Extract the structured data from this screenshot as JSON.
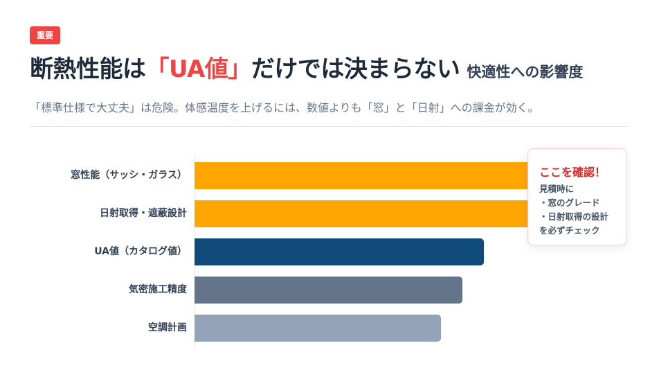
{
  "badge": "重要",
  "title": {
    "part1": "断熱性能は",
    "highlight": "「UA値」",
    "part2": "だけでは決まらない",
    "subtitle": "快適性への影響度"
  },
  "lead": "「標準仕様で大丈夫」は危険。体感温度を上げるには、数値よりも「窓」と「日射」への課金が効く。",
  "callout": {
    "title": "ここを確認！",
    "lines": [
      "見積時に",
      "・窓のグレード",
      "・日射取得の設計",
      "を必ずチェック"
    ]
  },
  "chart_data": {
    "type": "bar",
    "orientation": "horizontal",
    "title": "快適性への影響度",
    "categories": [
      "窓性能（サッシ・ガラス）",
      "日射取得・遮蔽設計",
      "UA値（カタログ値）",
      "気密施工精度",
      "空調計画"
    ],
    "values": [
      100,
      100,
      67,
      62,
      57
    ],
    "colors": [
      "#ffa500",
      "#ffa500",
      "#114b7c",
      "#64748b",
      "#94a3b8"
    ],
    "xlabel": "",
    "ylabel": "",
    "xlim": [
      0,
      100
    ],
    "grid": false,
    "legend": "none"
  }
}
